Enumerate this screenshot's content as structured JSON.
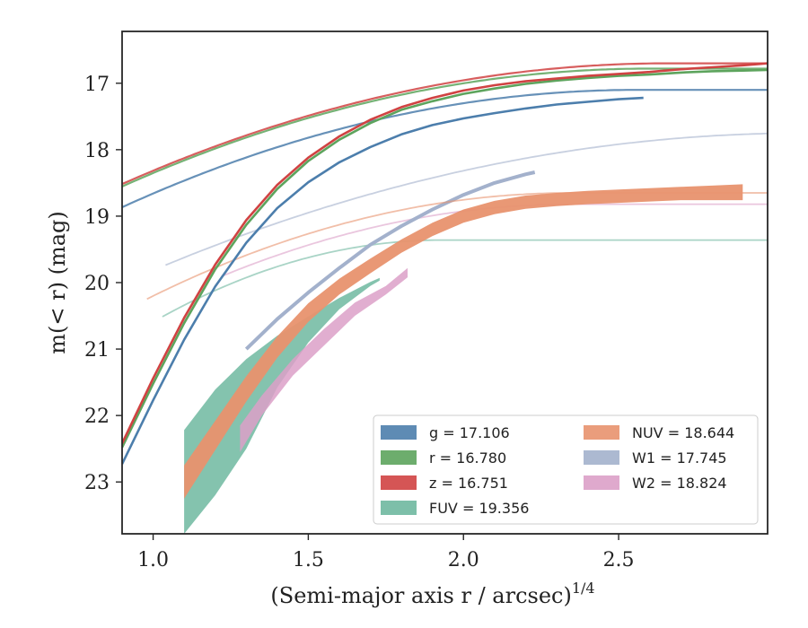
{
  "chart_data": {
    "type": "line",
    "xlabel": "(Semi-major axis r / arcsec)",
    "xlabel_sup": "1/4",
    "ylabel": "m(< r) (mag)",
    "xlim": [
      0.9,
      2.98
    ],
    "ylim": [
      23.78,
      16.22
    ],
    "y_inverted": true,
    "x_ticks": [
      1.0,
      1.5,
      2.0,
      2.5
    ],
    "x_tick_labels": [
      "1.0",
      "1.5",
      "2.0",
      "2.5"
    ],
    "y_ticks": [
      17,
      18,
      19,
      20,
      21,
      22,
      23
    ],
    "y_tick_labels": [
      "17",
      "18",
      "19",
      "20",
      "21",
      "22",
      "23"
    ],
    "grid": false,
    "legend_position": "lower-right",
    "series": [
      {
        "name": "g = 17.106",
        "color": "#4c7eac",
        "model": {
          "m_tot": 17.1,
          "xs": 2.56,
          "k": 4.2,
          "p": 1.1,
          "x_range": [
            0.9,
            2.98
          ]
        },
        "data_x": [
          0.9,
          1.0,
          1.1,
          1.2,
          1.3,
          1.4,
          1.5,
          1.6,
          1.7,
          1.8,
          1.9,
          2.0,
          2.1,
          2.2,
          2.3,
          2.4,
          2.5,
          2.58
        ],
        "data_y": [
          22.73,
          21.77,
          20.86,
          20.06,
          19.4,
          18.88,
          18.49,
          18.19,
          17.96,
          17.77,
          17.63,
          17.53,
          17.45,
          17.38,
          17.32,
          17.28,
          17.24,
          17.22
        ]
      },
      {
        "name": "r = 16.780",
        "color": "#5da45d",
        "model": {
          "m_tot": 16.78,
          "xs": 2.6,
          "k": 4.15,
          "p": 1.1,
          "x_range": [
            0.9,
            2.98
          ]
        },
        "data_x": [
          0.9,
          1.0,
          1.1,
          1.2,
          1.3,
          1.4,
          1.5,
          1.6,
          1.7,
          1.8,
          1.9,
          2.0,
          2.1,
          2.2,
          2.3,
          2.4,
          2.5,
          2.6,
          2.7,
          2.8,
          2.9,
          2.98
        ],
        "data_y": [
          22.48,
          21.52,
          20.61,
          19.8,
          19.13,
          18.59,
          18.17,
          17.85,
          17.6,
          17.4,
          17.27,
          17.16,
          17.08,
          17.01,
          16.96,
          16.92,
          16.89,
          16.87,
          16.84,
          16.82,
          16.81,
          16.8
        ]
      },
      {
        "name": "z = 16.751",
        "color": "#d04242",
        "model": {
          "m_tot": 16.7,
          "xs": 2.66,
          "k": 4.15,
          "p": 1.1,
          "x_range": [
            0.9,
            2.98
          ]
        },
        "data_x": [
          0.9,
          1.0,
          1.1,
          1.2,
          1.3,
          1.4,
          1.5,
          1.6,
          1.7,
          1.8,
          1.9,
          2.0,
          2.1,
          2.2,
          2.3,
          2.4,
          2.5,
          2.6,
          2.7,
          2.8,
          2.9,
          2.98
        ],
        "data_y": [
          22.42,
          21.44,
          20.53,
          19.73,
          19.06,
          18.53,
          18.12,
          17.8,
          17.55,
          17.36,
          17.22,
          17.11,
          17.03,
          16.97,
          16.93,
          16.89,
          16.86,
          16.83,
          16.79,
          16.76,
          16.73,
          16.7
        ]
      },
      {
        "name": "FUV = 19.356",
        "color": "#6fb8a0",
        "model": {
          "m_tot": 19.36,
          "xs": 1.93,
          "k": 5.3,
          "p": 1.25,
          "x_range": [
            1.03,
            2.98
          ]
        },
        "band_x": [
          1.1,
          1.2,
          1.3,
          1.4,
          1.5,
          1.6,
          1.7,
          1.73
        ],
        "band_upper": [
          22.22,
          21.61,
          21.15,
          20.8,
          20.51,
          20.23,
          19.99,
          19.93
        ],
        "band_lower": [
          23.78,
          23.2,
          22.5,
          21.58,
          20.9,
          20.4,
          20.05,
          19.97
        ]
      },
      {
        "name": "NUV = 18.644",
        "color": "#e8926e",
        "model": {
          "m_tot": 18.65,
          "xs": 2.35,
          "k": 4.7,
          "p": 1.1,
          "x_range": [
            0.98,
            2.98
          ]
        },
        "data_x": [
          1.1,
          1.2,
          1.3,
          1.4,
          1.5,
          1.6,
          1.7,
          1.8,
          1.9,
          2.0,
          2.1,
          2.2,
          2.3,
          2.4,
          2.5,
          2.6,
          2.7,
          2.8,
          2.9
        ],
        "data_y": [
          23.0,
          22.3,
          21.6,
          20.97,
          20.45,
          20.06,
          19.75,
          19.45,
          19.2,
          19.0,
          18.87,
          18.79,
          18.75,
          18.72,
          18.7,
          18.68,
          18.66,
          18.65,
          18.64
        ],
        "data_err": [
          0.25,
          0.22,
          0.19,
          0.16,
          0.14,
          0.12,
          0.11,
          0.1,
          0.1,
          0.1,
          0.1,
          0.1,
          0.1,
          0.1,
          0.1,
          0.1,
          0.1,
          0.11,
          0.12
        ]
      },
      {
        "name": "W1 = 17.745",
        "color": "#a3b1cc",
        "model": {
          "m_tot": 17.75,
          "xs": 3.1,
          "k": 4.5,
          "p": 1.15,
          "x_range": [
            1.04,
            2.98
          ]
        },
        "data_x": [
          1.3,
          1.4,
          1.5,
          1.6,
          1.7,
          1.8,
          1.9,
          2.0,
          2.1,
          2.2,
          2.23
        ],
        "data_y": [
          21.0,
          20.55,
          20.15,
          19.78,
          19.43,
          19.15,
          18.9,
          18.68,
          18.5,
          18.37,
          18.34
        ]
      },
      {
        "name": "W2 = 18.824",
        "color": "#dca0c8",
        "model": {
          "m_tot": 18.82,
          "xs": 2.35,
          "k": 4.7,
          "p": 1.1,
          "x_range": [
            1.22,
            2.98
          ]
        },
        "band_x": [
          1.28,
          1.35,
          1.45,
          1.55,
          1.65,
          1.75,
          1.82
        ],
        "band_upper": [
          22.15,
          21.7,
          21.15,
          20.7,
          20.3,
          20.05,
          19.78
        ],
        "band_lower": [
          22.55,
          22.0,
          21.4,
          20.95,
          20.5,
          20.18,
          19.92
        ]
      }
    ]
  }
}
